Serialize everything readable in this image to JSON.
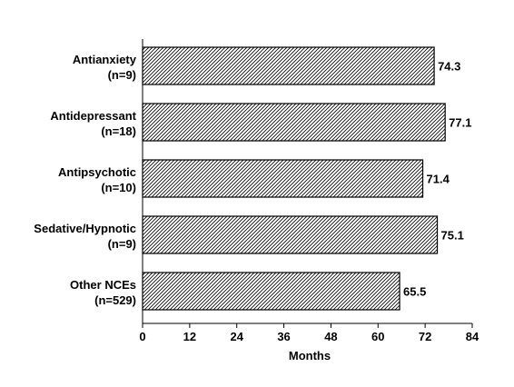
{
  "chart_data": {
    "type": "bar",
    "orientation": "horizontal",
    "categories": [
      [
        "Antianxiety",
        "(n=9)"
      ],
      [
        "Antidepressant",
        "(n=18)"
      ],
      [
        "Antipsychotic",
        "(n=10)"
      ],
      [
        "Sedative/Hypnotic",
        "(n=9)"
      ],
      [
        "Other NCEs",
        "(n=529)"
      ]
    ],
    "values": [
      74.3,
      77.1,
      71.4,
      75.1,
      65.5
    ],
    "value_labels": [
      "74.3",
      "77.1",
      "71.4",
      "75.1",
      "65.5"
    ],
    "xlabel": "Months",
    "xlim": [
      0,
      84
    ],
    "xticks": [
      0,
      12,
      24,
      36,
      48,
      60,
      72,
      84
    ],
    "xtick_labels": [
      "0",
      "12",
      "24",
      "36",
      "48",
      "60",
      "72",
      "84"
    ],
    "grid": false,
    "bar_fill": "diagonal-hatch",
    "colors": {
      "bar_stroke": "#000000",
      "hatch": "#000000",
      "background": "#ffffff"
    }
  }
}
